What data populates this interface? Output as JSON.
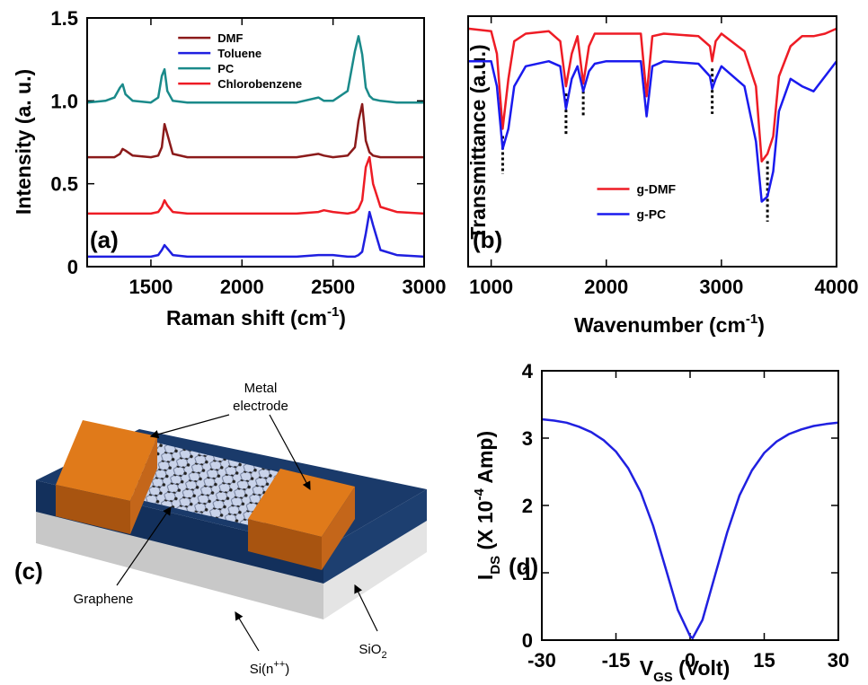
{
  "chart_data": [
    {
      "type": "line",
      "panel_label": "(a)",
      "ylabel": "Intensity (a. u.)",
      "xlabel": [
        "Raman shift (cm",
        "-1",
        ")"
      ],
      "x": [
        1150,
        1250,
        1300,
        1330,
        1345,
        1360,
        1400,
        1500,
        1540,
        1560,
        1575,
        1590,
        1620,
        1700,
        2000,
        2300,
        2420,
        2450,
        2500,
        2580,
        2620,
        2640,
        2660,
        2680,
        2700,
        2720,
        2760,
        2850,
        3000
      ],
      "series": [
        {
          "name": "DMF",
          "color": "#8b1a1a",
          "values": [
            0.66,
            0.66,
            0.66,
            0.68,
            0.71,
            0.7,
            0.67,
            0.66,
            0.67,
            0.72,
            0.86,
            0.8,
            0.68,
            0.66,
            0.66,
            0.66,
            0.68,
            0.67,
            0.66,
            0.67,
            0.72,
            0.88,
            0.98,
            0.76,
            0.69,
            0.67,
            0.66,
            0.66,
            0.66
          ]
        },
        {
          "name": "Toluene",
          "color": "#1f1fe0",
          "values": [
            0.06,
            0.06,
            0.06,
            0.06,
            0.06,
            0.06,
            0.06,
            0.06,
            0.07,
            0.1,
            0.13,
            0.11,
            0.07,
            0.06,
            0.06,
            0.06,
            0.07,
            0.07,
            0.07,
            0.06,
            0.06,
            0.07,
            0.09,
            0.2,
            0.33,
            0.25,
            0.1,
            0.07,
            0.06
          ]
        },
        {
          "name": "PC",
          "color": "#1a8a8a",
          "values": [
            0.99,
            1.0,
            1.02,
            1.08,
            1.1,
            1.04,
            1.0,
            0.99,
            1.02,
            1.15,
            1.19,
            1.06,
            1.0,
            0.99,
            0.99,
            0.99,
            1.02,
            1.0,
            1.0,
            1.06,
            1.3,
            1.39,
            1.28,
            1.08,
            1.03,
            1.01,
            1.0,
            0.99,
            0.99
          ]
        },
        {
          "name": "Chlorobenzene",
          "color": "#ee1c25",
          "values": [
            0.32,
            0.32,
            0.32,
            0.32,
            0.32,
            0.32,
            0.32,
            0.32,
            0.33,
            0.36,
            0.4,
            0.37,
            0.33,
            0.32,
            0.32,
            0.32,
            0.33,
            0.34,
            0.33,
            0.32,
            0.33,
            0.35,
            0.4,
            0.6,
            0.66,
            0.5,
            0.36,
            0.33,
            0.32
          ]
        }
      ],
      "xlim": [
        1150,
        3000
      ],
      "xticks": [
        1500,
        2000,
        2500,
        3000
      ],
      "ylim": [
        0,
        1.5
      ],
      "yticks": [
        0,
        0.5,
        {
          "value": 1,
          "label": "1.0"
        },
        1.5
      ],
      "grid": false,
      "legend": "upper center"
    },
    {
      "type": "line",
      "panel_label": "(b)",
      "ylabel": "Transmittance (a.u.)",
      "xlabel": [
        "Wavenumber (cm",
        "-1",
        ")"
      ],
      "x": [
        800,
        1000,
        1050,
        1100,
        1150,
        1200,
        1300,
        1500,
        1600,
        1650,
        1700,
        1750,
        1800,
        1850,
        1900,
        2000,
        2300,
        2350,
        2400,
        2500,
        2800,
        2900,
        2920,
        2950,
        3000,
        3200,
        3300,
        3350,
        3400,
        3450,
        3500,
        3600,
        3700,
        3800,
        3900,
        4000
      ],
      "series": [
        {
          "name": "g-DMF",
          "color": "#ee1c25",
          "values": [
            0.95,
            0.94,
            0.85,
            0.55,
            0.75,
            0.9,
            0.93,
            0.94,
            0.9,
            0.72,
            0.85,
            0.92,
            0.73,
            0.88,
            0.93,
            0.93,
            0.93,
            0.68,
            0.92,
            0.93,
            0.92,
            0.88,
            0.82,
            0.9,
            0.93,
            0.86,
            0.72,
            0.42,
            0.45,
            0.52,
            0.76,
            0.88,
            0.92,
            0.92,
            0.93,
            0.95
          ]
        },
        {
          "name": "g-PC",
          "color": "#1a1aee",
          "values": [
            0.82,
            0.82,
            0.72,
            0.47,
            0.55,
            0.72,
            0.8,
            0.82,
            0.8,
            0.63,
            0.75,
            0.8,
            0.7,
            0.78,
            0.81,
            0.82,
            0.82,
            0.6,
            0.8,
            0.82,
            0.81,
            0.76,
            0.71,
            0.75,
            0.8,
            0.72,
            0.5,
            0.26,
            0.28,
            0.38,
            0.62,
            0.75,
            0.72,
            0.7,
            0.76,
            0.82
          ]
        }
      ],
      "vlines": [
        1100,
        1650,
        1800,
        2920,
        3400
      ],
      "xlim": [
        800,
        4000
      ],
      "xticks": [
        1000,
        2000,
        3000,
        4000
      ],
      "ylim": [
        0,
        1
      ],
      "grid": false,
      "legend": "lower center"
    },
    {
      "type": "line",
      "panel_label": "(d)",
      "ylabel": [
        "I",
        "DS",
        " (X 10",
        "-4",
        " Amp)"
      ],
      "xlabel": [
        "V",
        "GS",
        " (Volt)"
      ],
      "x": [
        -30,
        -27.5,
        -25,
        -22.5,
        -20,
        -17.5,
        -15,
        -12.5,
        -10,
        -7.5,
        -5,
        -2.5,
        0,
        0.5,
        2.5,
        5,
        7.5,
        10,
        12.5,
        15,
        17.5,
        20,
        22.5,
        25,
        27.5,
        30
      ],
      "series": [
        {
          "color": "#2020e0",
          "values": [
            3.28,
            3.26,
            3.23,
            3.17,
            3.09,
            2.97,
            2.8,
            2.55,
            2.2,
            1.7,
            1.08,
            0.45,
            0.06,
            0.03,
            0.3,
            0.95,
            1.6,
            2.15,
            2.52,
            2.78,
            2.95,
            3.06,
            3.13,
            3.18,
            3.21,
            3.23
          ]
        }
      ],
      "xlim": [
        -30,
        30
      ],
      "xticks": [
        -30,
        -15,
        0,
        15,
        30
      ],
      "ylim": [
        0,
        4
      ],
      "yticks": [
        0,
        1,
        2,
        3,
        4
      ],
      "grid": false
    }
  ],
  "diagram": {
    "panel_label": "(c)",
    "electrode_label": [
      "Metal",
      "electrode"
    ],
    "graphene_label": "Graphene",
    "si_label": [
      "Si(n",
      "++",
      ")"
    ],
    "sio2_label": [
      "SiO",
      "2"
    ]
  }
}
